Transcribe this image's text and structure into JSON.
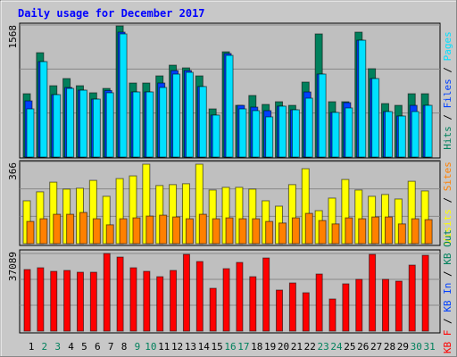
{
  "title": "Daily usage for December 2017",
  "legend_separator": " / ",
  "categories": [
    "1",
    "2",
    "3",
    "4",
    "5",
    "6",
    "7",
    "8",
    "9",
    "10",
    "11",
    "12",
    "13",
    "14",
    "15",
    "16",
    "17",
    "18",
    "19",
    "20",
    "21",
    "22",
    "23",
    "24",
    "25",
    "26",
    "27",
    "28",
    "29",
    "30",
    "31"
  ],
  "category_colors": [
    "#000000",
    "#00805c",
    "#00805c",
    "#000000",
    "#000000",
    "#000000",
    "#000000",
    "#000000",
    "#00805c",
    "#00805c",
    "#000000",
    "#000000",
    "#000000",
    "#000000",
    "#000000",
    "#00805c",
    "#00805c",
    "#000000",
    "#000000",
    "#000000",
    "#000000",
    "#000000",
    "#00805c",
    "#00805c",
    "#000000",
    "#000000",
    "#000000",
    "#000000",
    "#000000",
    "#00805c",
    "#00805c"
  ],
  "chart_data": [
    {
      "type": "bar",
      "ylim": [
        0,
        1568
      ],
      "yticks": [
        1568
      ],
      "series": [
        {
          "name": "Hits",
          "color": "#00805c",
          "values": [
            752,
            1239,
            847,
            932,
            847,
            763,
            815,
            1557,
            879,
            879,
            964,
            1091,
            1059,
            964,
            572,
            1250,
            614,
            731,
            625,
            657,
            614,
            890,
            1462,
            657,
            657,
            1483,
            1049,
            635,
            614,
            752,
            752
          ]
        },
        {
          "name": "Files",
          "color": "#0040ff",
          "values": [
            667,
            1133,
            741,
            826,
            794,
            688,
            790,
            1483,
            773,
            773,
            879,
            1027,
            1027,
            837,
            498,
            1229,
            614,
            593,
            551,
            604,
            561,
            773,
            985,
            530,
            646,
            1387,
            932,
            540,
            487,
            614,
            614
          ]
        },
        {
          "name": "Pages",
          "color": "#00e0ff",
          "values": [
            572,
            1133,
            741,
            815,
            794,
            688,
            763,
            1462,
            773,
            773,
            826,
            985,
            1006,
            837,
            498,
            1207,
            572,
            551,
            477,
            604,
            561,
            699,
            985,
            530,
            583,
            1387,
            932,
            540,
            487,
            540,
            614
          ]
        }
      ]
    },
    {
      "type": "bar",
      "ylim": [
        0,
        366
      ],
      "yticks": [
        366
      ],
      "series": [
        {
          "name": "Visits",
          "color": "#ffff00",
          "values": [
            191,
            231,
            274,
            243,
            247,
            282,
            211,
            290,
            302,
            354,
            259,
            263,
            267,
            354,
            239,
            251,
            251,
            243,
            191,
            167,
            263,
            334,
            147,
            203,
            286,
            239,
            211,
            219,
            199,
            278,
            235
          ]
        },
        {
          "name": "Sites",
          "color": "#ff8000",
          "values": [
            99,
            111,
            131,
            131,
            139,
            111,
            84,
            111,
            115,
            123,
            127,
            119,
            111,
            131,
            111,
            115,
            111,
            111,
            99,
            92,
            115,
            135,
            103,
            88,
            115,
            111,
            119,
            119,
            88,
            111,
            107
          ]
        }
      ]
    },
    {
      "type": "bar",
      "ylim": [
        0,
        37089
      ],
      "yticks": [
        37089
      ],
      "series": [
        {
          "name": "KB F",
          "color": "#ff0000",
          "values": [
            29400,
            30250,
            28540,
            28970,
            28120,
            28120,
            37060,
            35360,
            30250,
            28540,
            25990,
            28970,
            36640,
            33230,
            20450,
            29820,
            32800,
            25990,
            34930,
            19600,
            23000,
            18320,
            27260,
            15340,
            22580,
            24710,
            36640,
            24710,
            23860,
            31520,
            36210
          ]
        }
      ],
      "legend_only": [
        {
          "name": "KB In",
          "color": "#0040ff"
        },
        {
          "name": "KB Out",
          "color": "#00805c"
        }
      ]
    }
  ]
}
